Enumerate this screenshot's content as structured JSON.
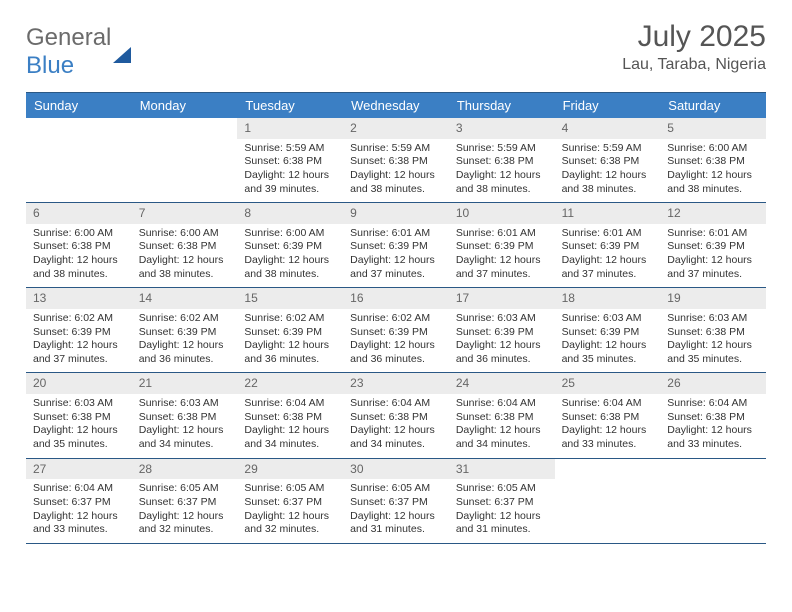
{
  "logo": {
    "word1": "General",
    "word2": "Blue"
  },
  "title": {
    "month": "July 2025",
    "location": "Lau, Taraba, Nigeria"
  },
  "dayNames": [
    "Sunday",
    "Monday",
    "Tuesday",
    "Wednesday",
    "Thursday",
    "Friday",
    "Saturday"
  ],
  "colors": {
    "header_bg": "#3b7fc4",
    "header_text": "#ffffff",
    "daynum_bg": "#ececec",
    "border": "#2a5885",
    "body_text": "#333333"
  },
  "weeks": [
    [
      {
        "empty": true
      },
      {
        "empty": true
      },
      {
        "day": "1",
        "sunrise": "Sunrise: 5:59 AM",
        "sunset": "Sunset: 6:38 PM",
        "daylight1": "Daylight: 12 hours",
        "daylight2": "and 39 minutes."
      },
      {
        "day": "2",
        "sunrise": "Sunrise: 5:59 AM",
        "sunset": "Sunset: 6:38 PM",
        "daylight1": "Daylight: 12 hours",
        "daylight2": "and 38 minutes."
      },
      {
        "day": "3",
        "sunrise": "Sunrise: 5:59 AM",
        "sunset": "Sunset: 6:38 PM",
        "daylight1": "Daylight: 12 hours",
        "daylight2": "and 38 minutes."
      },
      {
        "day": "4",
        "sunrise": "Sunrise: 5:59 AM",
        "sunset": "Sunset: 6:38 PM",
        "daylight1": "Daylight: 12 hours",
        "daylight2": "and 38 minutes."
      },
      {
        "day": "5",
        "sunrise": "Sunrise: 6:00 AM",
        "sunset": "Sunset: 6:38 PM",
        "daylight1": "Daylight: 12 hours",
        "daylight2": "and 38 minutes."
      }
    ],
    [
      {
        "day": "6",
        "sunrise": "Sunrise: 6:00 AM",
        "sunset": "Sunset: 6:38 PM",
        "daylight1": "Daylight: 12 hours",
        "daylight2": "and 38 minutes."
      },
      {
        "day": "7",
        "sunrise": "Sunrise: 6:00 AM",
        "sunset": "Sunset: 6:38 PM",
        "daylight1": "Daylight: 12 hours",
        "daylight2": "and 38 minutes."
      },
      {
        "day": "8",
        "sunrise": "Sunrise: 6:00 AM",
        "sunset": "Sunset: 6:39 PM",
        "daylight1": "Daylight: 12 hours",
        "daylight2": "and 38 minutes."
      },
      {
        "day": "9",
        "sunrise": "Sunrise: 6:01 AM",
        "sunset": "Sunset: 6:39 PM",
        "daylight1": "Daylight: 12 hours",
        "daylight2": "and 37 minutes."
      },
      {
        "day": "10",
        "sunrise": "Sunrise: 6:01 AM",
        "sunset": "Sunset: 6:39 PM",
        "daylight1": "Daylight: 12 hours",
        "daylight2": "and 37 minutes."
      },
      {
        "day": "11",
        "sunrise": "Sunrise: 6:01 AM",
        "sunset": "Sunset: 6:39 PM",
        "daylight1": "Daylight: 12 hours",
        "daylight2": "and 37 minutes."
      },
      {
        "day": "12",
        "sunrise": "Sunrise: 6:01 AM",
        "sunset": "Sunset: 6:39 PM",
        "daylight1": "Daylight: 12 hours",
        "daylight2": "and 37 minutes."
      }
    ],
    [
      {
        "day": "13",
        "sunrise": "Sunrise: 6:02 AM",
        "sunset": "Sunset: 6:39 PM",
        "daylight1": "Daylight: 12 hours",
        "daylight2": "and 37 minutes."
      },
      {
        "day": "14",
        "sunrise": "Sunrise: 6:02 AM",
        "sunset": "Sunset: 6:39 PM",
        "daylight1": "Daylight: 12 hours",
        "daylight2": "and 36 minutes."
      },
      {
        "day": "15",
        "sunrise": "Sunrise: 6:02 AM",
        "sunset": "Sunset: 6:39 PM",
        "daylight1": "Daylight: 12 hours",
        "daylight2": "and 36 minutes."
      },
      {
        "day": "16",
        "sunrise": "Sunrise: 6:02 AM",
        "sunset": "Sunset: 6:39 PM",
        "daylight1": "Daylight: 12 hours",
        "daylight2": "and 36 minutes."
      },
      {
        "day": "17",
        "sunrise": "Sunrise: 6:03 AM",
        "sunset": "Sunset: 6:39 PM",
        "daylight1": "Daylight: 12 hours",
        "daylight2": "and 36 minutes."
      },
      {
        "day": "18",
        "sunrise": "Sunrise: 6:03 AM",
        "sunset": "Sunset: 6:39 PM",
        "daylight1": "Daylight: 12 hours",
        "daylight2": "and 35 minutes."
      },
      {
        "day": "19",
        "sunrise": "Sunrise: 6:03 AM",
        "sunset": "Sunset: 6:38 PM",
        "daylight1": "Daylight: 12 hours",
        "daylight2": "and 35 minutes."
      }
    ],
    [
      {
        "day": "20",
        "sunrise": "Sunrise: 6:03 AM",
        "sunset": "Sunset: 6:38 PM",
        "daylight1": "Daylight: 12 hours",
        "daylight2": "and 35 minutes."
      },
      {
        "day": "21",
        "sunrise": "Sunrise: 6:03 AM",
        "sunset": "Sunset: 6:38 PM",
        "daylight1": "Daylight: 12 hours",
        "daylight2": "and 34 minutes."
      },
      {
        "day": "22",
        "sunrise": "Sunrise: 6:04 AM",
        "sunset": "Sunset: 6:38 PM",
        "daylight1": "Daylight: 12 hours",
        "daylight2": "and 34 minutes."
      },
      {
        "day": "23",
        "sunrise": "Sunrise: 6:04 AM",
        "sunset": "Sunset: 6:38 PM",
        "daylight1": "Daylight: 12 hours",
        "daylight2": "and 34 minutes."
      },
      {
        "day": "24",
        "sunrise": "Sunrise: 6:04 AM",
        "sunset": "Sunset: 6:38 PM",
        "daylight1": "Daylight: 12 hours",
        "daylight2": "and 34 minutes."
      },
      {
        "day": "25",
        "sunrise": "Sunrise: 6:04 AM",
        "sunset": "Sunset: 6:38 PM",
        "daylight1": "Daylight: 12 hours",
        "daylight2": "and 33 minutes."
      },
      {
        "day": "26",
        "sunrise": "Sunrise: 6:04 AM",
        "sunset": "Sunset: 6:38 PM",
        "daylight1": "Daylight: 12 hours",
        "daylight2": "and 33 minutes."
      }
    ],
    [
      {
        "day": "27",
        "sunrise": "Sunrise: 6:04 AM",
        "sunset": "Sunset: 6:37 PM",
        "daylight1": "Daylight: 12 hours",
        "daylight2": "and 33 minutes."
      },
      {
        "day": "28",
        "sunrise": "Sunrise: 6:05 AM",
        "sunset": "Sunset: 6:37 PM",
        "daylight1": "Daylight: 12 hours",
        "daylight2": "and 32 minutes."
      },
      {
        "day": "29",
        "sunrise": "Sunrise: 6:05 AM",
        "sunset": "Sunset: 6:37 PM",
        "daylight1": "Daylight: 12 hours",
        "daylight2": "and 32 minutes."
      },
      {
        "day": "30",
        "sunrise": "Sunrise: 6:05 AM",
        "sunset": "Sunset: 6:37 PM",
        "daylight1": "Daylight: 12 hours",
        "daylight2": "and 31 minutes."
      },
      {
        "day": "31",
        "sunrise": "Sunrise: 6:05 AM",
        "sunset": "Sunset: 6:37 PM",
        "daylight1": "Daylight: 12 hours",
        "daylight2": "and 31 minutes."
      },
      {
        "empty": true
      },
      {
        "empty": true
      }
    ]
  ]
}
